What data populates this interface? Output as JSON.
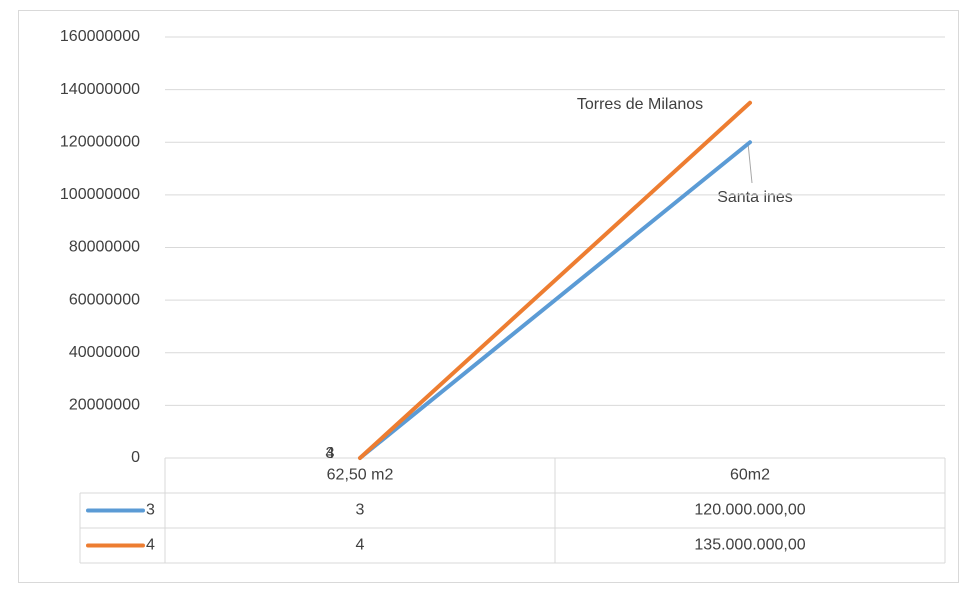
{
  "chart_data": {
    "type": "line",
    "categories": [
      "62,50 m2",
      "60m2"
    ],
    "series": [
      {
        "name": "3",
        "color": "#5b9bd5",
        "values": [
          3,
          120000000
        ],
        "value_labels": [
          "3",
          "120.000.000,00"
        ]
      },
      {
        "name": "4",
        "color": "#ed7d31",
        "values": [
          4,
          135000000
        ],
        "value_labels": [
          "4",
          "135.000.000,00"
        ]
      }
    ],
    "ylim": [
      0,
      160000000
    ],
    "yticks": [
      0,
      20000000,
      40000000,
      60000000,
      80000000,
      100000000,
      120000000,
      140000000,
      160000000
    ],
    "grid": true,
    "annotations": [
      "Torres de Milanos",
      "Santa ines"
    ]
  }
}
